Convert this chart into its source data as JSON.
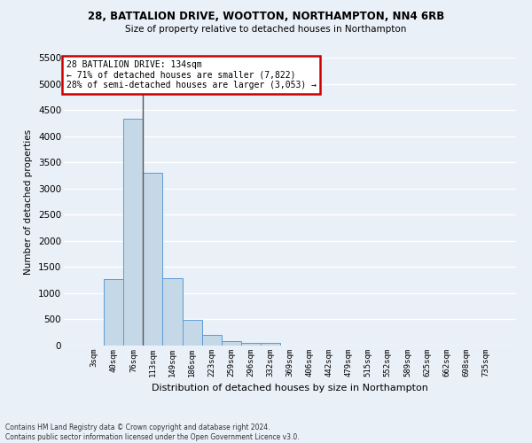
{
  "title1": "28, BATTALION DRIVE, WOOTTON, NORTHAMPTON, NN4 6RB",
  "title2": "Size of property relative to detached houses in Northampton",
  "xlabel": "Distribution of detached houses by size in Northampton",
  "ylabel": "Number of detached properties",
  "footnote": "Contains HM Land Registry data © Crown copyright and database right 2024.\nContains public sector information licensed under the Open Government Licence v3.0.",
  "bin_labels": [
    "3sqm",
    "40sqm",
    "76sqm",
    "113sqm",
    "149sqm",
    "186sqm",
    "223sqm",
    "259sqm",
    "296sqm",
    "332sqm",
    "369sqm",
    "406sqm",
    "442sqm",
    "479sqm",
    "515sqm",
    "552sqm",
    "589sqm",
    "625sqm",
    "662sqm",
    "698sqm",
    "735sqm"
  ],
  "bar_values": [
    0,
    1270,
    4330,
    3300,
    1280,
    490,
    210,
    80,
    55,
    50,
    0,
    0,
    0,
    0,
    0,
    0,
    0,
    0,
    0,
    0,
    0
  ],
  "bar_color": "#c5d8e8",
  "bar_edge_color": "#5b9bd5",
  "ylim": [
    0,
    5500
  ],
  "yticks": [
    0,
    500,
    1000,
    1500,
    2000,
    2500,
    3000,
    3500,
    4000,
    4500,
    5000,
    5500
  ],
  "property_label": "28 BATTALION DRIVE: 134sqm",
  "annotation_line1": "← 71% of detached houses are smaller (7,822)",
  "annotation_line2": "28% of semi-detached houses are larger (3,053) →",
  "annotation_box_color": "#ffffff",
  "annotation_box_edge_color": "#cc0000",
  "vline_x": 2.5,
  "background_color": "#eaf0f8",
  "grid_color": "#ffffff"
}
